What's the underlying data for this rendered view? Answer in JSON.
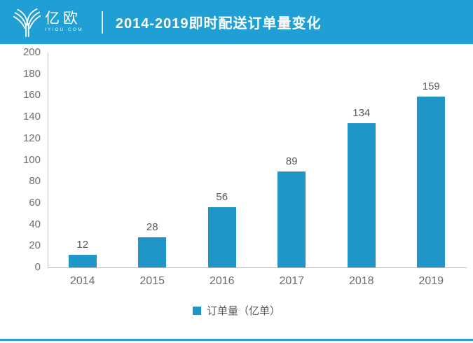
{
  "header": {
    "brand_cn": "亿欧",
    "brand_sub": "IYIOU·COM",
    "title": "2014-2019即时配送订单量变化",
    "bg_color": "#1F9FD4"
  },
  "chart_data": {
    "type": "bar",
    "title": "2014-2019即时配送订单量变化",
    "categories": [
      "2014",
      "2015",
      "2016",
      "2017",
      "2018",
      "2019"
    ],
    "series": [
      {
        "name": "订单量（亿单）",
        "values": [
          12,
          28,
          56,
          89,
          134,
          159
        ]
      }
    ],
    "ylim": [
      0,
      200
    ],
    "yticks": [
      0,
      20,
      40,
      60,
      80,
      100,
      120,
      140,
      160,
      180,
      200
    ],
    "grid": false,
    "legend_position": "bottom",
    "bar_color": "#2095C8",
    "data_labels_shown": true
  },
  "legend": {
    "marker_color": "#2095C8",
    "label": "订单量（亿单）"
  },
  "footer": {
    "accent_color": "#2D9FD3"
  }
}
